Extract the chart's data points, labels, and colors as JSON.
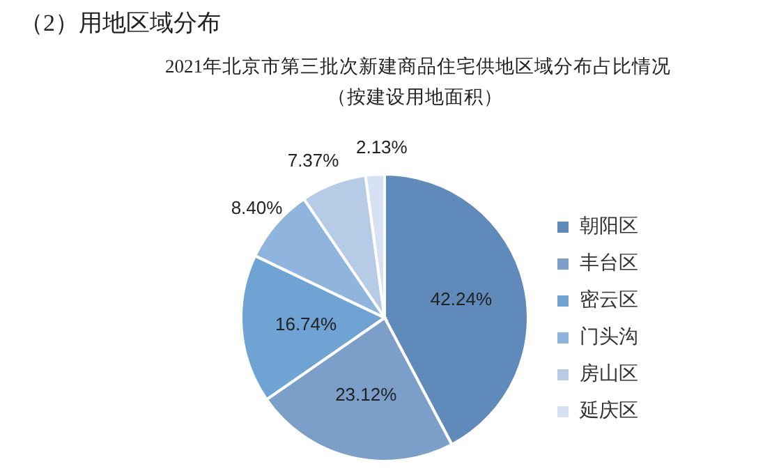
{
  "chart_data": {
    "type": "pie",
    "title": "2021年北京市第三批次新建商品住宅供地区域分布占比情况",
    "subtitle": "（按建设用地面积）",
    "annotations": [
      "（2）用地区域分布"
    ],
    "categories": [
      "朝阳区",
      "丰台区",
      "密云区",
      "门头沟",
      "房山区",
      "延庆区"
    ],
    "values": [
      42.24,
      23.12,
      16.74,
      8.4,
      7.37,
      2.13
    ],
    "value_labels": [
      "42.24%",
      "23.12%",
      "16.74%",
      "8.40%",
      "7.37%",
      "2.13%"
    ],
    "colors": [
      "#5f8ab9",
      "#7b9fc8",
      "#6fa3d3",
      "#8fb5de",
      "#b5cbe6",
      "#d6e2f1"
    ],
    "legend": "right"
  }
}
